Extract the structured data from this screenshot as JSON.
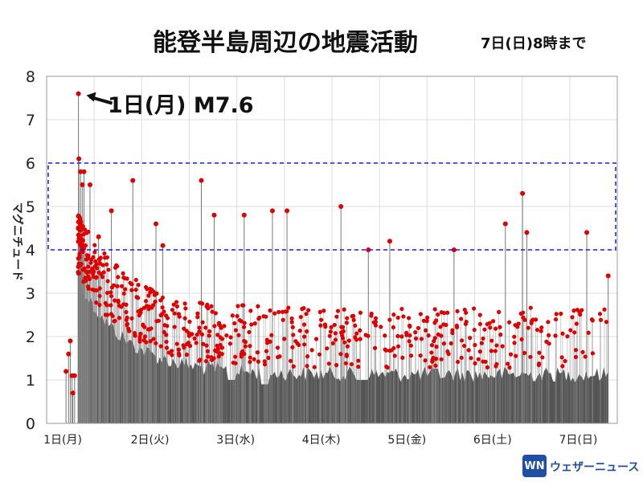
{
  "header": {
    "title": "能登半島周辺の地震活動",
    "subtitle": "7日(日)8時まで"
  },
  "logo": {
    "mark": "WN",
    "label": "ウェザーニュース"
  },
  "chart_data": {
    "type": "scatter",
    "title": "能登半島周辺の地震活動",
    "subtitle": "7日(日)8時まで",
    "ylabel": "マグニチュード",
    "xlabel": "",
    "ylim": [
      0,
      8
    ],
    "yticks": [
      0,
      1,
      2,
      3,
      4,
      5,
      6,
      7,
      8
    ],
    "xlim": [
      0,
      6.4
    ],
    "xticks": [
      {
        "value": 0,
        "label": "1日(月)"
      },
      {
        "value": 1,
        "label": "2日(火)"
      },
      {
        "value": 2,
        "label": "3日(水)"
      },
      {
        "value": 3,
        "label": "4日(木)"
      },
      {
        "value": 4,
        "label": "5日(金)"
      },
      {
        "value": 5,
        "label": "6日(土)"
      },
      {
        "value": 6,
        "label": "7日(日)"
      }
    ],
    "grid": true,
    "colors": {
      "point": "#e00000",
      "stem": "#555555",
      "area": "#555555",
      "highlight_box": "#1a1adb",
      "arrow": "#111111"
    },
    "highlight_range": {
      "y_from": 4,
      "y_to": 6
    },
    "annotation": {
      "text": "1日(月) M7.6",
      "x": 0.32,
      "magnitude": 7.6
    },
    "notable_points": [
      {
        "x": 0.02,
        "y": 1.2
      },
      {
        "x": 0.05,
        "y": 1.6
      },
      {
        "x": 0.07,
        "y": 1.9
      },
      {
        "x": 0.09,
        "y": 1.1
      },
      {
        "x": 0.1,
        "y": 0.7
      },
      {
        "x": 0.12,
        "y": 1.1
      },
      {
        "x": 0.165,
        "y": 7.6
      },
      {
        "x": 0.17,
        "y": 6.1
      },
      {
        "x": 0.19,
        "y": 5.8
      },
      {
        "x": 0.21,
        "y": 5.5
      },
      {
        "x": 0.23,
        "y": 5.8
      },
      {
        "x": 0.3,
        "y": 5.5
      },
      {
        "x": 0.4,
        "y": 4.3
      },
      {
        "x": 0.55,
        "y": 4.9
      },
      {
        "x": 0.8,
        "y": 5.6
      },
      {
        "x": 1.07,
        "y": 4.6
      },
      {
        "x": 1.15,
        "y": 4.1
      },
      {
        "x": 1.6,
        "y": 5.6
      },
      {
        "x": 1.75,
        "y": 4.8
      },
      {
        "x": 2.1,
        "y": 4.8
      },
      {
        "x": 2.43,
        "y": 4.9
      },
      {
        "x": 2.6,
        "y": 4.9
      },
      {
        "x": 3.23,
        "y": 5.0
      },
      {
        "x": 3.55,
        "y": 4.0
      },
      {
        "x": 3.8,
        "y": 4.2
      },
      {
        "x": 4.55,
        "y": 4.0
      },
      {
        "x": 5.15,
        "y": 4.6
      },
      {
        "x": 5.35,
        "y": 5.3
      },
      {
        "x": 5.4,
        "y": 4.4
      },
      {
        "x": 6.1,
        "y": 4.4
      },
      {
        "x": 6.35,
        "y": 3.4
      }
    ],
    "background_points": {
      "count": 620,
      "description_free": true
    }
  }
}
